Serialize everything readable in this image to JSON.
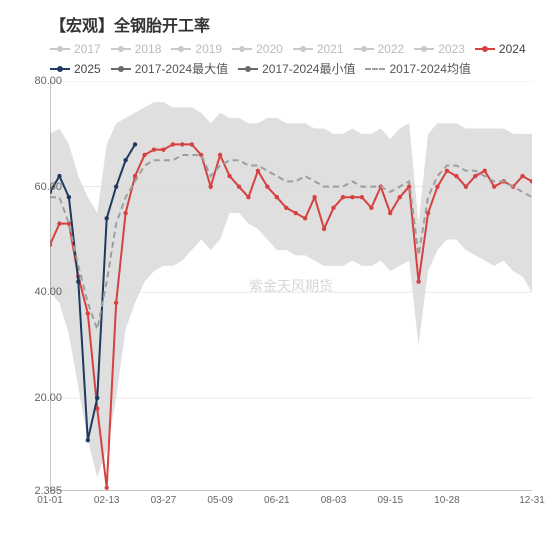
{
  "title": "【宏观】全钢胎开工率",
  "watermark": "紫金天风期货",
  "chart": {
    "type": "line",
    "background_color": "#ffffff",
    "grid_color": "#e8e8e8",
    "axis_color": "#888888",
    "tick_font_size": 11,
    "title_font_size": 16,
    "legend_font_size": 12,
    "ylim": [
      2.385,
      80.0
    ],
    "yticks": [
      2.385,
      20.0,
      40.0,
      60.0,
      80.0
    ],
    "ytick_labels": [
      "2.385",
      "20.00",
      "40.00",
      "60.00",
      "80.00"
    ],
    "x_categories": [
      "01-01",
      "01-08",
      "01-15",
      "01-22",
      "01-29",
      "02-05",
      "02-13",
      "02-20",
      "02-27",
      "03-06",
      "03-13",
      "03-20",
      "03-27",
      "04-03",
      "04-10",
      "04-17",
      "04-24",
      "05-01",
      "05-09",
      "05-16",
      "05-23",
      "05-30",
      "06-06",
      "06-14",
      "06-21",
      "06-28",
      "07-05",
      "07-12",
      "07-20",
      "07-27",
      "08-03",
      "08-10",
      "08-17",
      "08-24",
      "09-01",
      "09-08",
      "09-15",
      "09-22",
      "09-29",
      "10-06",
      "10-14",
      "10-21",
      "10-28",
      "11-04",
      "11-11",
      "11-18",
      "11-25",
      "12-02",
      "12-10",
      "12-17",
      "12-24",
      "12-31"
    ],
    "xtick_show_idx": [
      0,
      6,
      12,
      18,
      24,
      30,
      36,
      42,
      51
    ],
    "xtick_labels": [
      "01-01",
      "02-13",
      "03-27",
      "05-09",
      "06-21",
      "08-03",
      "09-15",
      "10-28",
      "12-31"
    ],
    "band_upper": [
      70,
      71,
      68,
      62,
      58,
      55,
      68,
      72,
      73,
      74,
      75,
      76,
      76,
      75,
      75,
      75,
      74,
      72,
      74,
      73,
      73,
      72,
      72,
      73,
      73,
      72,
      72,
      72,
      71,
      71,
      70,
      70,
      71,
      70,
      70,
      71,
      69,
      71,
      72,
      53,
      70,
      72,
      72,
      72,
      71,
      71,
      71,
      71,
      71,
      70,
      70,
      70
    ],
    "band_lower": [
      40,
      38,
      32,
      22,
      12,
      5,
      10,
      20,
      33,
      38,
      42,
      44,
      45,
      45,
      46,
      48,
      50,
      48,
      50,
      55,
      55,
      53,
      52,
      50,
      48,
      48,
      47,
      47,
      46,
      45,
      45,
      45,
      46,
      45,
      45,
      46,
      44,
      45,
      46,
      30,
      44,
      48,
      50,
      50,
      48,
      47,
      46,
      45,
      46,
      44,
      43,
      40
    ],
    "band_color": "#d9d9d9",
    "series": [
      {
        "name": "2017",
        "label": "2017",
        "type": "legend_only",
        "color": "#c9c9c9",
        "marker": "dot",
        "line_width": 2,
        "dash": "none"
      },
      {
        "name": "2018",
        "label": "2018",
        "type": "legend_only",
        "color": "#c9c9c9",
        "marker": "dot",
        "line_width": 2,
        "dash": "none"
      },
      {
        "name": "2019",
        "label": "2019",
        "type": "legend_only",
        "color": "#c9c9c9",
        "marker": "dot",
        "line_width": 2,
        "dash": "none"
      },
      {
        "name": "2020",
        "label": "2020",
        "type": "legend_only",
        "color": "#c9c9c9",
        "marker": "dot",
        "line_width": 2,
        "dash": "none"
      },
      {
        "name": "2021",
        "label": "2021",
        "type": "legend_only",
        "color": "#c9c9c9",
        "marker": "dot",
        "line_width": 2,
        "dash": "none"
      },
      {
        "name": "2022",
        "label": "2022",
        "type": "legend_only",
        "color": "#c9c9c9",
        "marker": "dot",
        "line_width": 2,
        "dash": "none"
      },
      {
        "name": "2023",
        "label": "2023",
        "type": "legend_only",
        "color": "#c9c9c9",
        "marker": "dot",
        "line_width": 2,
        "dash": "none"
      },
      {
        "name": "2024",
        "label": "2024",
        "type": "line",
        "color": "#d64141",
        "marker": "dot",
        "line_width": 2,
        "dash": "none",
        "values": [
          49,
          53,
          53,
          43,
          36,
          18,
          3,
          38,
          55,
          62,
          66,
          67,
          67,
          68,
          68,
          68,
          66,
          60,
          66,
          62,
          60,
          58,
          63,
          60,
          58,
          56,
          55,
          54,
          58,
          52,
          56,
          58,
          58,
          58,
          56,
          60,
          55,
          58,
          60,
          42,
          55,
          60,
          63,
          62,
          60,
          62,
          63,
          60,
          61,
          60,
          62,
          61
        ]
      },
      {
        "name": "2025",
        "label": "2025",
        "type": "line",
        "color": "#1e3a5f",
        "marker": "dot",
        "line_width": 2,
        "dash": "none",
        "values": [
          59,
          62,
          58,
          42,
          12,
          20,
          54,
          60,
          65,
          68
        ]
      },
      {
        "name": "max",
        "label": "2017-2024最大值",
        "type": "legend_only",
        "color": "#6a6a6a",
        "marker": "dot",
        "line_width": 2,
        "dash": "none"
      },
      {
        "name": "min",
        "label": "2017-2024最小值",
        "type": "legend_only",
        "color": "#6a6a6a",
        "marker": "dot",
        "line_width": 2,
        "dash": "none"
      },
      {
        "name": "mean",
        "label": "2017-2024均值",
        "type": "line",
        "color": "#9e9e9e",
        "marker": "none",
        "line_width": 2,
        "dash": "6,4",
        "values": [
          58,
          58,
          53,
          45,
          38,
          33,
          42,
          53,
          58,
          61,
          64,
          65,
          65,
          65,
          66,
          66,
          66,
          62,
          64,
          65,
          65,
          64,
          64,
          63,
          62,
          61,
          61,
          62,
          61,
          60,
          60,
          60,
          61,
          60,
          60,
          60,
          59,
          60,
          61,
          47,
          58,
          62,
          64,
          64,
          63,
          63,
          62,
          61,
          61,
          60,
          59,
          58
        ]
      }
    ]
  }
}
